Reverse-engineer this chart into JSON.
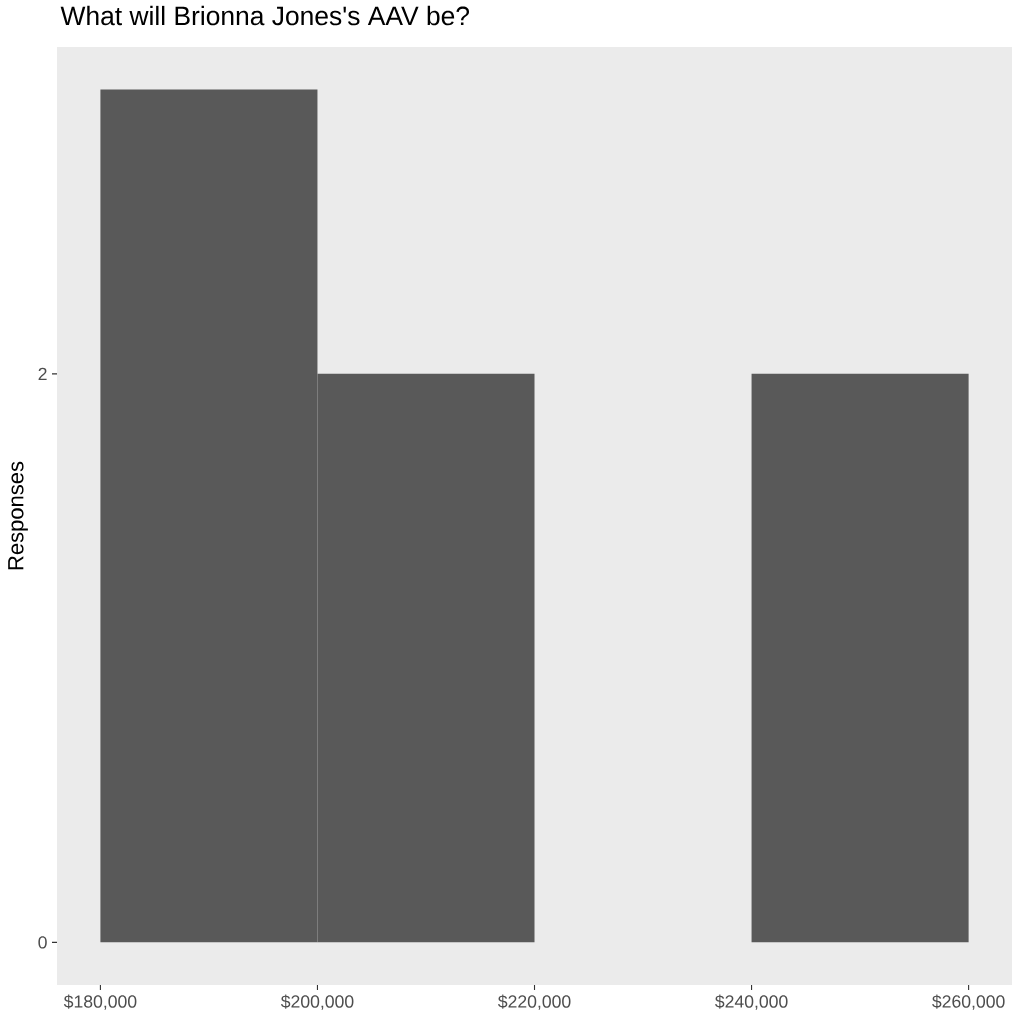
{
  "chart_data": {
    "type": "histogram",
    "title": "What will Brionna Jones's AAV be?",
    "ylabel": "Responses",
    "bins": [
      180000,
      200000,
      220000,
      240000,
      260000
    ],
    "values": [
      3,
      2,
      0,
      2
    ],
    "color": "#595959",
    "xlim": [
      176000,
      264000
    ],
    "ylim": [
      -0.15,
      3.15
    ],
    "xticks": [
      {
        "value": 180000,
        "label": "$180,000"
      },
      {
        "value": 200000,
        "label": "$200,000"
      },
      {
        "value": 220000,
        "label": "$220,000"
      },
      {
        "value": 240000,
        "label": "$240,000"
      },
      {
        "value": 260000,
        "label": "$260,000"
      }
    ],
    "yticks": [
      0,
      2
    ]
  }
}
